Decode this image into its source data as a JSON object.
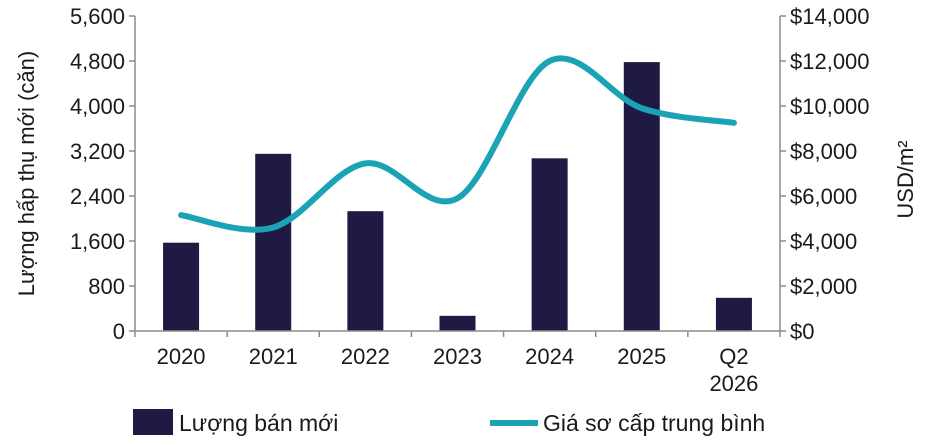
{
  "chart_data": {
    "type": "bar+line",
    "categories": [
      [
        "2020"
      ],
      [
        "2021"
      ],
      [
        "2022"
      ],
      [
        "2023"
      ],
      [
        "2024"
      ],
      [
        "2025"
      ],
      [
        "Q2",
        "2026"
      ]
    ],
    "series": [
      {
        "name": "Lượng bán mới",
        "type": "bar",
        "axis": "left",
        "color": "#1f1a44",
        "values": [
          1570,
          3150,
          2130,
          270,
          3070,
          4780,
          590
        ]
      },
      {
        "name": "Giá sơ cấp trung bình",
        "type": "line",
        "axis": "right",
        "color": "#1aa3b5",
        "smooth": true,
        "values": [
          5150,
          4600,
          7450,
          5900,
          12000,
          9900,
          9250
        ]
      }
    ],
    "y_left": {
      "label": "Lượng hấp thụ mới (căn)",
      "range": [
        0,
        5600
      ],
      "ticks": [
        "0",
        "800",
        "1,600",
        "2,400",
        "3,200",
        "4,000",
        "4,800",
        "5,600"
      ]
    },
    "y_right": {
      "label": "USD/m²",
      "range": [
        0,
        14000
      ],
      "ticks": [
        "$0",
        "$2,000",
        "$4,000",
        "$6,000",
        "$8,000",
        "$10,000",
        "$12,000",
        "$14,000"
      ]
    },
    "grid": false,
    "legend_position": "bottom"
  }
}
